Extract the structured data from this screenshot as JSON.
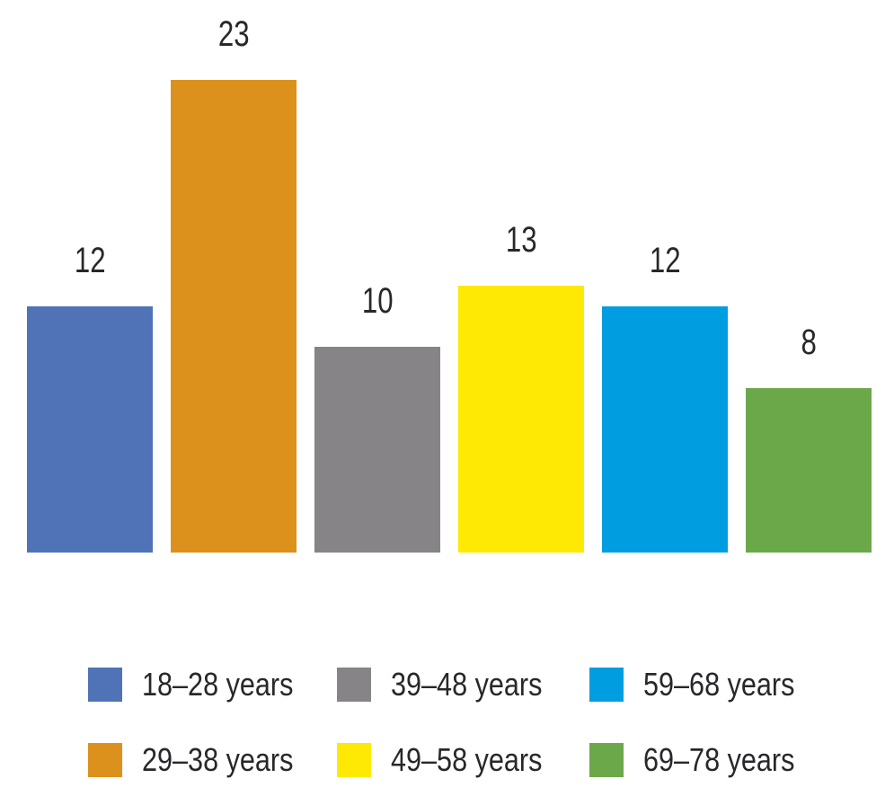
{
  "chart_data": {
    "type": "bar",
    "title": "",
    "xlabel": "",
    "ylabel": "",
    "categories": [
      "18–28 years",
      "29–38 years",
      "39–48 years",
      "49–58 years",
      "59–68 years",
      "69–78 years"
    ],
    "values": [
      12,
      23,
      10,
      13,
      12,
      8
    ],
    "colors": [
      "#4f73b6",
      "#dc911c",
      "#868486",
      "#fde903",
      "#009ee0",
      "#6ba84a"
    ],
    "ylim": [
      0,
      23
    ],
    "grid": false,
    "axes_hidden": true,
    "data_labels_shown": true,
    "legend_position": "bottom",
    "legend_rows": [
      [
        "18–28 years",
        "39–48 years",
        "59–68 years"
      ],
      [
        "29–38 years",
        "49–58 years",
        "69–78 years"
      ]
    ],
    "text_color": "#29272a",
    "background_color": "#ffffff"
  }
}
